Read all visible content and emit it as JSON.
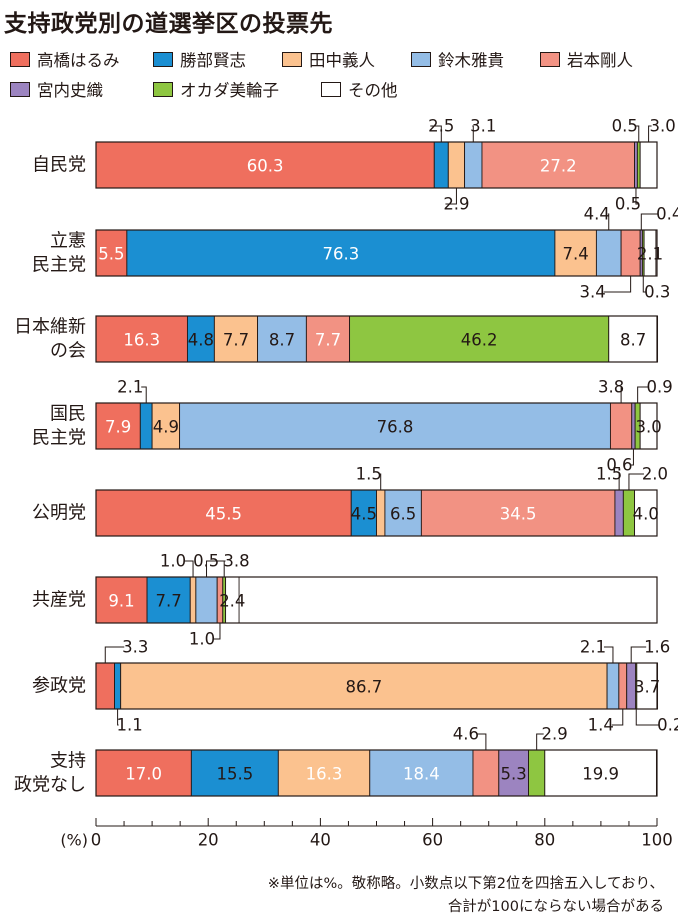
{
  "title": "支持政党別の道選挙区の投票先",
  "note_lines": [
    "※単位は%。敬称略。小数点以下第2位を四捨五入しており、",
    "合計が100にならない場合がある"
  ],
  "chart_data": {
    "type": "bar",
    "orientation": "horizontal",
    "stacked": true,
    "xlabel": "(%)",
    "xlim": [
      0,
      100
    ],
    "xticks": [
      0,
      20,
      40,
      60,
      80,
      100
    ],
    "legend_position": "top",
    "categories": [
      {
        "label": "自民党",
        "lines": [
          "自民党"
        ]
      },
      {
        "label": "立憲民主党",
        "lines": [
          "立憲",
          "民主党"
        ]
      },
      {
        "label": "日本維新の会",
        "lines": [
          "日本維新",
          "の会"
        ]
      },
      {
        "label": "国民民主党",
        "lines": [
          "国民",
          "民主党"
        ]
      },
      {
        "label": "公明党",
        "lines": [
          "公明党"
        ]
      },
      {
        "label": "共産党",
        "lines": [
          "共産党"
        ]
      },
      {
        "label": "参政党",
        "lines": [
          "参政党"
        ]
      },
      {
        "label": "支持政党なし",
        "lines": [
          "支持",
          "政党なし"
        ]
      }
    ],
    "series": [
      {
        "name": "高橋はるみ",
        "color": "#ef6f5e",
        "values": [
          60.3,
          5.5,
          16.3,
          7.9,
          45.5,
          9.1,
          3.3,
          17.0
        ]
      },
      {
        "name": "勝部賢志",
        "color": "#1b8fd2",
        "values": [
          2.5,
          76.3,
          4.8,
          2.1,
          4.5,
          7.7,
          1.1,
          15.5
        ]
      },
      {
        "name": "田中義人",
        "color": "#fbc28f",
        "values": [
          2.9,
          7.4,
          7.7,
          4.9,
          1.5,
          1.0,
          86.7,
          16.3
        ]
      },
      {
        "name": "鈴木雅貴",
        "color": "#94bde6",
        "values": [
          3.1,
          4.4,
          8.7,
          76.8,
          6.5,
          3.8,
          2.1,
          18.4
        ]
      },
      {
        "name": "岩本剛人",
        "color": "#f29283",
        "values": [
          27.2,
          3.4,
          7.7,
          3.8,
          34.5,
          1.0,
          1.4,
          4.6
        ]
      },
      {
        "name": "宮内史織",
        "color": "#9c84c0",
        "values": [
          0.5,
          0.4,
          0,
          0.6,
          1.5,
          0,
          1.6,
          5.3
        ]
      },
      {
        "name": "オカダ美輪子",
        "color": "#8ec641",
        "values": [
          0.5,
          0.3,
          46.2,
          0.9,
          2.0,
          0.5,
          0.2,
          2.9
        ]
      },
      {
        "name": "その他",
        "color": "#ffffff",
        "values": [
          3.0,
          2.1,
          8.7,
          3.0,
          4.0,
          2.4,
          3.7,
          19.9
        ]
      }
    ],
    "labels": [
      [
        {
          "s": 0,
          "p": "in",
          "c": "w"
        },
        {
          "s": 1,
          "p": "up",
          "dx": 0,
          "t": "2.5"
        },
        {
          "s": 2,
          "p": "dn",
          "dx": 0,
          "t": "2.9"
        },
        {
          "s": 3,
          "p": "up",
          "dx": 10,
          "t": "3.1"
        },
        {
          "s": 4,
          "p": "in",
          "c": "w"
        },
        {
          "s": 5,
          "p": "dn",
          "dx": -8,
          "t": "0.5"
        },
        {
          "s": 6,
          "p": "up",
          "dx": -14,
          "t": "0.5"
        },
        {
          "s": 7,
          "p": "up",
          "dx": 14,
          "t": "3.0"
        }
      ],
      [
        {
          "s": 0,
          "p": "in",
          "c": "w"
        },
        {
          "s": 1,
          "p": "in",
          "c": "w"
        },
        {
          "s": 2,
          "p": "in",
          "c": "k"
        },
        {
          "s": 3,
          "p": "up",
          "dx": -12,
          "t": "4.4"
        },
        {
          "s": 4,
          "p": "dn",
          "dx": -38,
          "t": "3.4"
        },
        {
          "s": 5,
          "p": "up",
          "dx": 28,
          "t": "0.4"
        },
        {
          "s": 6,
          "p": "dn",
          "dx": 14,
          "t": "0.3"
        },
        {
          "s": 7,
          "p": "in",
          "c": "k"
        }
      ],
      [
        {
          "s": 0,
          "p": "in",
          "c": "w"
        },
        {
          "s": 1,
          "p": "in",
          "c": "k"
        },
        {
          "s": 2,
          "p": "in",
          "c": "k"
        },
        {
          "s": 3,
          "p": "in",
          "c": "k"
        },
        {
          "s": 4,
          "p": "in",
          "c": "w"
        },
        {
          "s": 6,
          "p": "in",
          "c": "k"
        },
        {
          "s": 7,
          "p": "in",
          "c": "k"
        }
      ],
      [
        {
          "s": 0,
          "p": "in",
          "c": "w"
        },
        {
          "s": 1,
          "p": "up",
          "dx": -16,
          "t": "2.1"
        },
        {
          "s": 2,
          "p": "in",
          "c": "k"
        },
        {
          "s": 3,
          "p": "in",
          "c": "k"
        },
        {
          "s": 4,
          "p": "up",
          "dx": -10,
          "t": "3.8"
        },
        {
          "s": 5,
          "p": "dn",
          "dx": -14,
          "t": "0.6"
        },
        {
          "s": 6,
          "p": "up",
          "dx": 22,
          "t": "0.9"
        },
        {
          "s": 7,
          "p": "in",
          "c": "k"
        }
      ],
      [
        {
          "s": 0,
          "p": "in",
          "c": "w"
        },
        {
          "s": 1,
          "p": "in",
          "c": "k"
        },
        {
          "s": 2,
          "p": "up",
          "dx": -12,
          "t": "1.5"
        },
        {
          "s": 3,
          "p": "in",
          "c": "k"
        },
        {
          "s": 4,
          "p": "in",
          "c": "w"
        },
        {
          "s": 5,
          "p": "up",
          "dx": -10,
          "t": "1.5"
        },
        {
          "s": 6,
          "p": "up",
          "dx": 26,
          "t": "2.0"
        },
        {
          "s": 7,
          "p": "in",
          "c": "k"
        }
      ],
      [
        {
          "s": 0,
          "p": "in",
          "c": "w"
        },
        {
          "s": 1,
          "p": "in",
          "c": "k"
        },
        {
          "s": 2,
          "p": "up",
          "dx": -20,
          "t": "1.0"
        },
        {
          "s": 3,
          "p": "up",
          "dx": 30,
          "t": "3.8"
        },
        {
          "s": 4,
          "p": "dn",
          "dx": -18,
          "t": "1.0"
        },
        {
          "s": 6,
          "p": "up",
          "dx": -18,
          "t": "0.5"
        },
        {
          "s": 7,
          "p": "in",
          "c": "k"
        }
      ],
      [
        {
          "s": 0,
          "p": "up",
          "dx": 30,
          "t": "3.3"
        },
        {
          "s": 1,
          "p": "dn",
          "dx": 12,
          "t": "1.1"
        },
        {
          "s": 2,
          "p": "in",
          "c": "k"
        },
        {
          "s": 3,
          "p": "up",
          "dx": -20,
          "t": "2.1"
        },
        {
          "s": 4,
          "p": "dn",
          "dx": -22,
          "t": "1.4"
        },
        {
          "s": 5,
          "p": "up",
          "dx": 26,
          "t": "1.6"
        },
        {
          "s": 6,
          "p": "dn",
          "dx": 34,
          "t": "0.2"
        },
        {
          "s": 7,
          "p": "in",
          "c": "k"
        }
      ],
      [
        {
          "s": 0,
          "p": "in",
          "c": "w"
        },
        {
          "s": 1,
          "p": "in",
          "c": "k"
        },
        {
          "s": 2,
          "p": "in",
          "c": "w"
        },
        {
          "s": 3,
          "p": "in",
          "c": "w"
        },
        {
          "s": 4,
          "p": "up",
          "dx": -20,
          "t": "4.6"
        },
        {
          "s": 5,
          "p": "in",
          "c": "k"
        },
        {
          "s": 6,
          "p": "up",
          "dx": 18,
          "t": "2.9"
        },
        {
          "s": 7,
          "p": "in",
          "c": "k"
        }
      ]
    ]
  }
}
